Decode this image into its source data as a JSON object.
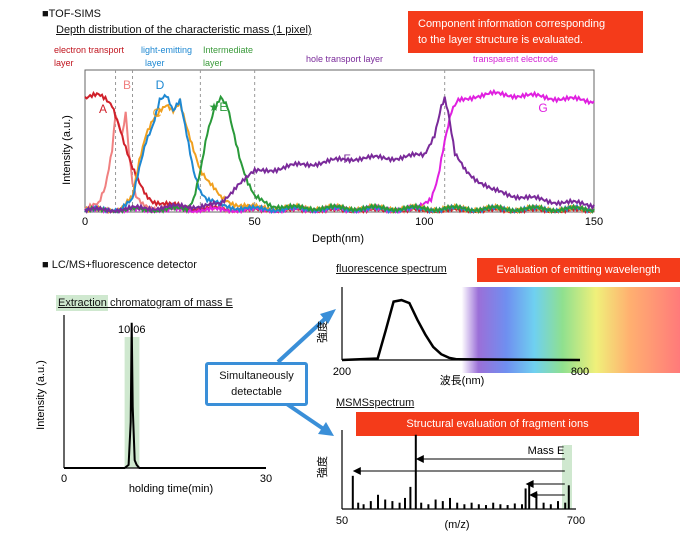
{
  "top": {
    "section": "■TOF-SIMS",
    "subtitle": "Depth distribution of the characteristic mass (1 pixel)",
    "callout": [
      "Component  information corresponding",
      "to the  layer structure is evaluated."
    ],
    "layers": [
      {
        "label": [
          "electron transport",
          "layer"
        ],
        "color": "#c0141e"
      },
      {
        "label": [
          "light-emitting",
          "layer"
        ],
        "color": "#1e88d2"
      },
      {
        "label": [
          "Intermediate",
          "layer"
        ],
        "color": "#3a9a3a"
      },
      {
        "label": [
          "hole transport layer"
        ],
        "color": "#7a2a9a"
      },
      {
        "label": [
          "transparent electrode"
        ],
        "color": "#d41ed4"
      }
    ],
    "ylabel": "Intensity  (a.u.)",
    "xlabel": "Depth(nm)",
    "xticks": [
      "0",
      "50",
      "100",
      "150"
    ],
    "peak_labels": [
      {
        "text": "A",
        "color": "#d0202a"
      },
      {
        "text": "B",
        "color": "#f08080"
      },
      {
        "text": "C",
        "color": "#f0a020"
      },
      {
        "text": "D",
        "color": "#1e88d2"
      },
      {
        "text": "★E",
        "color": "#2a9a3a"
      },
      {
        "text": "F",
        "color": "#7a2a9a"
      },
      {
        "text": "G",
        "color": "#e020e0"
      }
    ]
  },
  "lc": {
    "section": "■ LC/MS+fluorescence detector",
    "title": "Extraction chromatogram of mass E",
    "peak_label": "10.06",
    "ylabel": "Intensity  (a.u.)",
    "xlabel": "holding time(min)",
    "xticks": [
      "0",
      "30"
    ]
  },
  "middle": {
    "detect": [
      "Simultaneously",
      "detectable"
    ]
  },
  "fluor": {
    "title": "fluorescence spectrum",
    "callout": "Evaluation of emitting wavelength",
    "ylabel": "強度",
    "xlabel": "波長(nm)",
    "xticks": [
      "200",
      "800"
    ]
  },
  "msms": {
    "title": "MSMSspectrum",
    "callout": "Structural evaluation of fragment ions",
    "ylabel": "強度",
    "xlabel": "(m/z)",
    "xticks": [
      "50",
      "700"
    ],
    "mass_label": "Mass  E"
  },
  "colors": {
    "A": "#d0202a",
    "B": "#f08080",
    "C": "#f0a020",
    "D": "#1e88d2",
    "E": "#2a9a3a",
    "F": "#7a2a9a",
    "G": "#e020e0",
    "callout": "#f43b1a",
    "highlight": "#cfe8cf"
  },
  "chart_data": [
    {
      "type": "line",
      "title": "Depth distribution of the characteristic mass (1 pixel)",
      "xlabel": "Depth(nm)",
      "ylabel": "Intensity  (a.u.)",
      "xlim": [
        0,
        150
      ],
      "layer_boundaries_nm": [
        9,
        14,
        34,
        50,
        106
      ],
      "series": [
        {
          "name": "A",
          "x": [
            0,
            2,
            4,
            6,
            8,
            10,
            12,
            14,
            16,
            18,
            20,
            25,
            30,
            40,
            50,
            150
          ],
          "y": [
            0.8,
            0.81,
            0.82,
            0.8,
            0.76,
            0.62,
            0.45,
            0.3,
            0.2,
            0.12,
            0.08,
            0.05,
            0.03,
            0.02,
            0.01,
            0.01
          ]
        },
        {
          "name": "B",
          "x": [
            0,
            4,
            6,
            8,
            9,
            10,
            11,
            12,
            13,
            14,
            15,
            17,
            20,
            30,
            150
          ],
          "y": [
            0.02,
            0.05,
            0.18,
            0.45,
            0.7,
            0.62,
            0.55,
            0.7,
            0.4,
            0.2,
            0.1,
            0.05,
            0.03,
            0.02,
            0.01
          ]
        },
        {
          "name": "C",
          "x": [
            0,
            10,
            14,
            16,
            18,
            20,
            22,
            24,
            26,
            28,
            30,
            32,
            34,
            36,
            38,
            40,
            44,
            50,
            150
          ],
          "y": [
            0.01,
            0.02,
            0.1,
            0.35,
            0.55,
            0.66,
            0.72,
            0.75,
            0.7,
            0.76,
            0.6,
            0.45,
            0.3,
            0.22,
            0.16,
            0.1,
            0.06,
            0.03,
            0.02
          ]
        },
        {
          "name": "D",
          "x": [
            0,
            10,
            14,
            16,
            18,
            20,
            22,
            24,
            26,
            28,
            30,
            32,
            34,
            36,
            40,
            45,
            50,
            150
          ],
          "y": [
            0.01,
            0.02,
            0.08,
            0.3,
            0.5,
            0.62,
            0.8,
            0.82,
            0.7,
            0.78,
            0.55,
            0.3,
            0.15,
            0.08,
            0.05,
            0.03,
            0.02,
            0.02
          ]
        },
        {
          "name": "E",
          "x": [
            0,
            30,
            32,
            34,
            36,
            38,
            40,
            42,
            44,
            46,
            48,
            50,
            55,
            60,
            150
          ],
          "y": [
            0.01,
            0.02,
            0.1,
            0.3,
            0.55,
            0.7,
            0.8,
            0.75,
            0.55,
            0.35,
            0.2,
            0.1,
            0.05,
            0.03,
            0.02
          ]
        },
        {
          "name": "F",
          "x": [
            0,
            40,
            45,
            50,
            55,
            60,
            70,
            80,
            90,
            100,
            103,
            105,
            106,
            107,
            109,
            112,
            116,
            120,
            130,
            140,
            150
          ],
          "y": [
            0.01,
            0.05,
            0.2,
            0.28,
            0.3,
            0.32,
            0.35,
            0.38,
            0.38,
            0.4,
            0.55,
            0.75,
            0.8,
            0.7,
            0.4,
            0.3,
            0.22,
            0.15,
            0.1,
            0.07,
            0.05
          ]
        },
        {
          "name": "G",
          "x": [
            0,
            98,
            102,
            104,
            106,
            108,
            110,
            115,
            120,
            130,
            140,
            150
          ],
          "y": [
            0.01,
            0.02,
            0.1,
            0.25,
            0.5,
            0.7,
            0.78,
            0.82,
            0.83,
            0.82,
            0.8,
            0.78
          ]
        }
      ]
    },
    {
      "type": "line",
      "title": "Extraction chromatogram of mass E",
      "xlabel": "holding time(min)",
      "ylabel": "Intensity  (a.u.)",
      "xlim": [
        0,
        30
      ],
      "peak_rt": 10.06,
      "series": [
        {
          "name": "",
          "x": [
            0,
            9.0,
            9.6,
            9.9,
            10.06,
            10.2,
            10.5,
            10.8,
            11.2,
            30
          ],
          "y": [
            0.0,
            0.0,
            0.02,
            0.3,
            0.95,
            0.4,
            0.05,
            0.02,
            0.0,
            0.0
          ]
        }
      ]
    },
    {
      "type": "area",
      "title": "fluorescence spectrum",
      "xlabel": "波長(nm)",
      "ylabel": "強度",
      "xlim": [
        200,
        800
      ],
      "series": [
        {
          "name": "",
          "x": [
            200,
            290,
            310,
            330,
            350,
            370,
            390,
            410,
            430,
            450,
            470,
            490,
            800
          ],
          "y": [
            0.0,
            0.02,
            0.4,
            0.8,
            0.82,
            0.78,
            0.55,
            0.35,
            0.18,
            0.08,
            0.03,
            0.01,
            0.0
          ]
        }
      ]
    },
    {
      "type": "bar",
      "title": "MSMSspectrum",
      "xlabel": "(m/z)",
      "ylabel": "強度",
      "xlim": [
        50,
        700
      ],
      "precursor_mz": 680,
      "x": [
        80,
        95,
        110,
        130,
        150,
        170,
        190,
        210,
        225,
        240,
        255,
        270,
        290,
        310,
        330,
        350,
        370,
        390,
        410,
        430,
        450,
        470,
        490,
        510,
        530,
        550,
        560,
        570,
        590,
        610,
        630,
        650,
        670,
        680
      ],
      "values": [
        0.42,
        0.08,
        0.06,
        0.1,
        0.18,
        0.12,
        0.1,
        0.08,
        0.14,
        0.28,
        0.94,
        0.08,
        0.06,
        0.12,
        0.1,
        0.14,
        0.08,
        0.06,
        0.08,
        0.06,
        0.05,
        0.08,
        0.06,
        0.05,
        0.07,
        0.06,
        0.26,
        0.32,
        0.2,
        0.08,
        0.06,
        0.1,
        0.08,
        0.3
      ]
    }
  ]
}
